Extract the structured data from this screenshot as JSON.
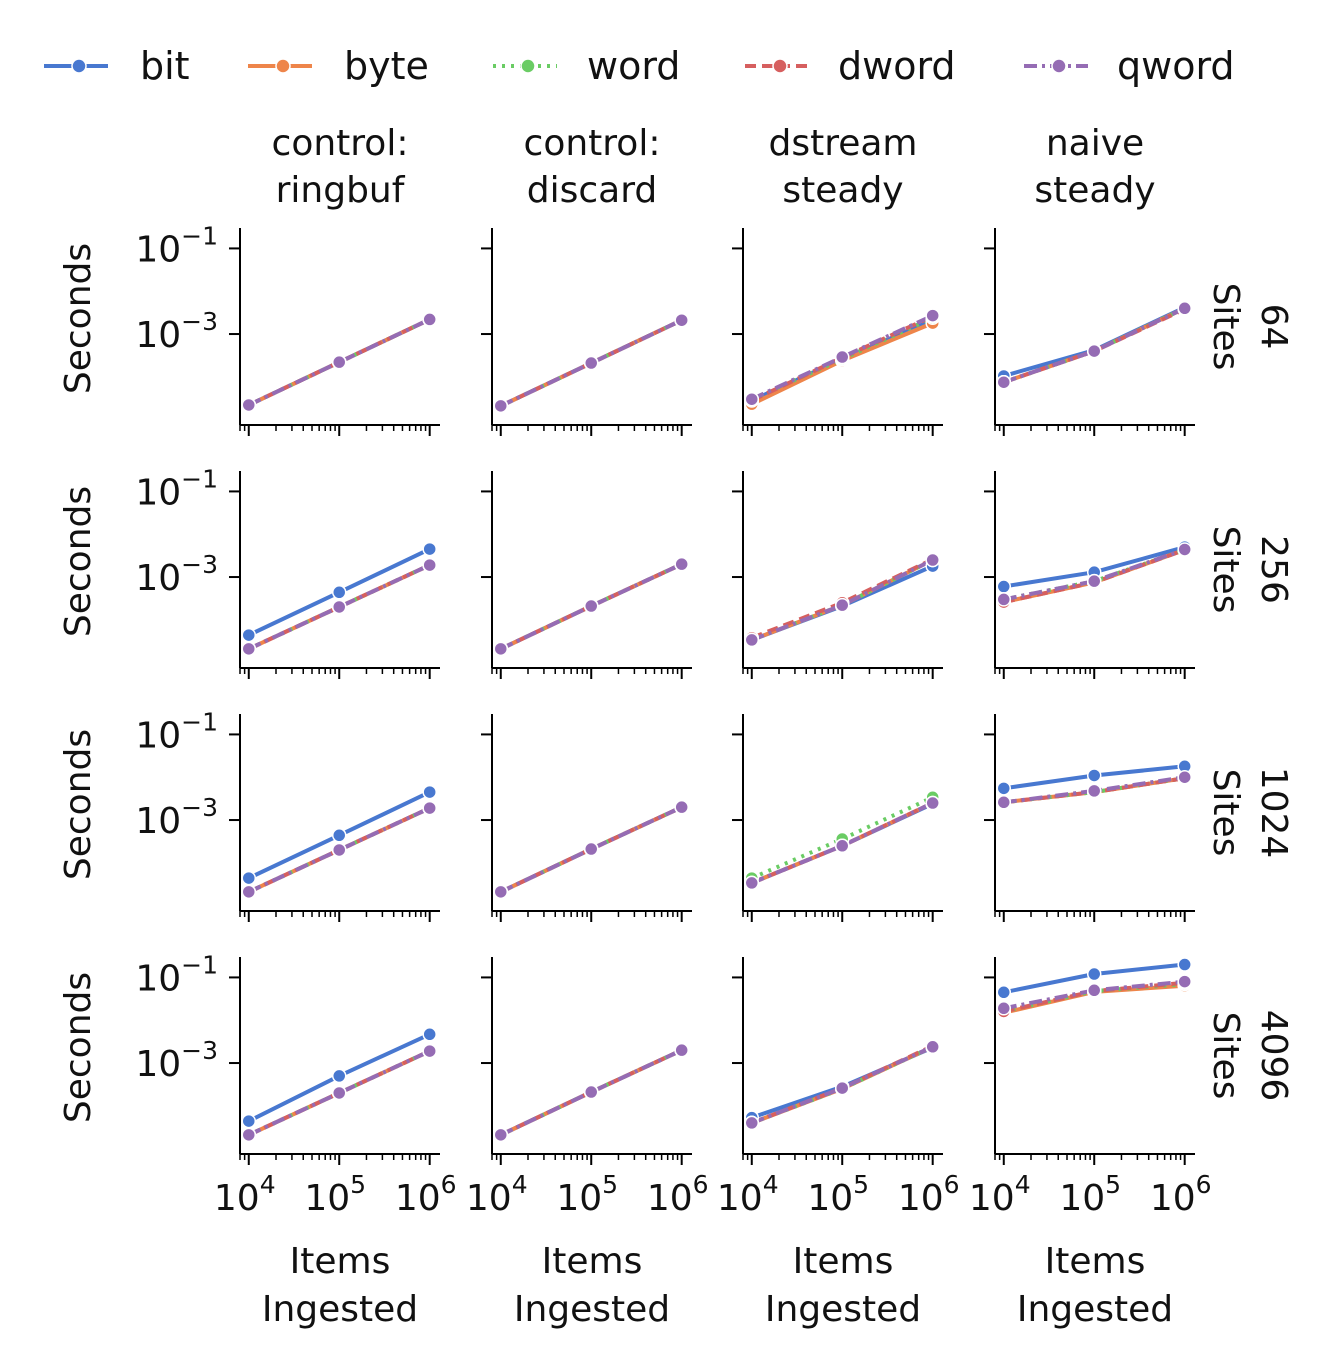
{
  "legend": [
    {
      "name": "bit",
      "color": "#4878d0",
      "dash": "solid"
    },
    {
      "name": "byte",
      "color": "#ee854a",
      "dash": "solid"
    },
    {
      "name": "word",
      "color": "#6acc64",
      "dash": "dotted"
    },
    {
      "name": "dword",
      "color": "#d65f5f",
      "dash": "dashed"
    },
    {
      "name": "qword",
      "color": "#956cb4",
      "dash": "dashdot"
    }
  ],
  "chart_data": {
    "type": "line",
    "facet_columns": [
      {
        "line1": "control:",
        "line2": "ringbuf"
      },
      {
        "line1": "control:",
        "line2": "discard"
      },
      {
        "line1": "dstream",
        "line2": "steady"
      },
      {
        "line1": "naive",
        "line2": "steady"
      }
    ],
    "facet_rows": [
      {
        "value": "64",
        "unit": "Sites"
      },
      {
        "value": "256",
        "unit": "Sites"
      },
      {
        "value": "1024",
        "unit": "Sites"
      },
      {
        "value": "4096",
        "unit": "Sites"
      }
    ],
    "ylabel": "Seconds",
    "xlabel_line1": "Items",
    "xlabel_line2": "Ingested",
    "x_scale": "log",
    "y_scale": "log",
    "x": [
      10000,
      100000,
      1000000
    ],
    "xlim": [
      8000,
      1300000
    ],
    "ylim": [
      7.5e-06,
      0.3
    ],
    "x_ticks": [
      {
        "value": 10000,
        "base": "10",
        "exp": "4"
      },
      {
        "value": 100000,
        "base": "10",
        "exp": "5"
      },
      {
        "value": 1000000,
        "base": "10",
        "exp": "6"
      }
    ],
    "y_ticks": [
      {
        "value": 0.1,
        "base": "10",
        "exp": "−1"
      },
      {
        "value": 0.001,
        "base": "10",
        "exp": "−3"
      }
    ],
    "grid": false,
    "legend_position": "top",
    "panels": [
      {
        "row": 0,
        "col": 0,
        "series": [
          {
            "name": "bit",
            "values": [
              2.2e-05,
              0.00022,
              0.0022
            ]
          },
          {
            "name": "byte",
            "values": [
              2.2e-05,
              0.00022,
              0.0022
            ]
          },
          {
            "name": "word",
            "values": [
              2.2e-05,
              0.00022,
              0.0022
            ]
          },
          {
            "name": "dword",
            "values": [
              2.2e-05,
              0.00022,
              0.0022
            ]
          },
          {
            "name": "qword",
            "values": [
              2.2e-05,
              0.00022,
              0.0022
            ]
          }
        ]
      },
      {
        "row": 0,
        "col": 1,
        "series": [
          {
            "name": "bit",
            "values": [
              2.1e-05,
              0.00021,
              0.0021
            ]
          },
          {
            "name": "byte",
            "values": [
              2.1e-05,
              0.00021,
              0.0021
            ]
          },
          {
            "name": "word",
            "values": [
              2.1e-05,
              0.00021,
              0.0021
            ]
          },
          {
            "name": "dword",
            "values": [
              2.1e-05,
              0.00021,
              0.0021
            ]
          },
          {
            "name": "qword",
            "values": [
              2.1e-05,
              0.00021,
              0.0021
            ]
          }
        ]
      },
      {
        "row": 0,
        "col": 2,
        "series": [
          {
            "name": "bit",
            "values": [
              2.8e-05,
              0.00026,
              0.0021
            ]
          },
          {
            "name": "byte",
            "values": [
              2.3e-05,
              0.00024,
              0.0018
            ]
          },
          {
            "name": "word",
            "values": [
              3e-05,
              0.00026,
              0.0024
            ]
          },
          {
            "name": "dword",
            "values": [
              2.8e-05,
              0.00028,
              0.0026
            ]
          },
          {
            "name": "qword",
            "values": [
              3e-05,
              0.00029,
              0.0027
            ]
          }
        ]
      },
      {
        "row": 0,
        "col": 3,
        "series": [
          {
            "name": "bit",
            "values": [
              0.000105,
              0.00042,
              0.0042
            ]
          },
          {
            "name": "byte",
            "values": [
              7.5e-05,
              0.0004,
              0.004
            ]
          },
          {
            "name": "word",
            "values": [
              7.5e-05,
              0.0004,
              0.004
            ]
          },
          {
            "name": "dword",
            "values": [
              7.5e-05,
              0.0004,
              0.0038
            ]
          },
          {
            "name": "qword",
            "values": [
              7.5e-05,
              0.0004,
              0.004
            ]
          }
        ]
      },
      {
        "row": 1,
        "col": 0,
        "series": [
          {
            "name": "bit",
            "values": [
              4.4e-05,
              0.00044,
              0.0045
            ]
          },
          {
            "name": "byte",
            "values": [
              2.1e-05,
              0.0002,
              0.0019
            ]
          },
          {
            "name": "word",
            "values": [
              2.1e-05,
              0.0002,
              0.0019
            ]
          },
          {
            "name": "dword",
            "values": [
              2.1e-05,
              0.0002,
              0.0019
            ]
          },
          {
            "name": "qword",
            "values": [
              2.1e-05,
              0.0002,
              0.0019
            ]
          }
        ]
      },
      {
        "row": 1,
        "col": 1,
        "series": [
          {
            "name": "bit",
            "values": [
              2.1e-05,
              0.00021,
              0.002
            ]
          },
          {
            "name": "byte",
            "values": [
              2.1e-05,
              0.00021,
              0.002
            ]
          },
          {
            "name": "word",
            "values": [
              2.1e-05,
              0.00021,
              0.002
            ]
          },
          {
            "name": "dword",
            "values": [
              2.1e-05,
              0.00021,
              0.002
            ]
          },
          {
            "name": "qword",
            "values": [
              2.1e-05,
              0.00021,
              0.002
            ]
          }
        ]
      },
      {
        "row": 1,
        "col": 2,
        "series": [
          {
            "name": "bit",
            "values": [
              3.4e-05,
              0.00021,
              0.0018
            ]
          },
          {
            "name": "byte",
            "values": [
              3.4e-05,
              0.00022,
              0.0025
            ]
          },
          {
            "name": "word",
            "values": [
              3.4e-05,
              0.00022,
              0.0025
            ]
          },
          {
            "name": "dword",
            "values": [
              3.8e-05,
              0.00025,
              0.0026
            ]
          },
          {
            "name": "qword",
            "values": [
              3.4e-05,
              0.00022,
              0.0025
            ]
          }
        ]
      },
      {
        "row": 1,
        "col": 3,
        "series": [
          {
            "name": "bit",
            "values": [
              0.0006,
              0.0013,
              0.005
            ]
          },
          {
            "name": "byte",
            "values": [
              0.00026,
              0.00075,
              0.0043
            ]
          },
          {
            "name": "word",
            "values": [
              0.0003,
              0.0008,
              0.0043
            ]
          },
          {
            "name": "dword",
            "values": [
              0.00026,
              0.00075,
              0.0043
            ]
          },
          {
            "name": "qword",
            "values": [
              0.0003,
              0.0008,
              0.0044
            ]
          }
        ]
      },
      {
        "row": 2,
        "col": 0,
        "series": [
          {
            "name": "bit",
            "values": [
              4.4e-05,
              0.00044,
              0.0045
            ]
          },
          {
            "name": "byte",
            "values": [
              2.1e-05,
              0.0002,
              0.0019
            ]
          },
          {
            "name": "word",
            "values": [
              2.1e-05,
              0.0002,
              0.0019
            ]
          },
          {
            "name": "dword",
            "values": [
              2.1e-05,
              0.0002,
              0.0019
            ]
          },
          {
            "name": "qword",
            "values": [
              2.1e-05,
              0.0002,
              0.0019
            ]
          }
        ]
      },
      {
        "row": 2,
        "col": 1,
        "series": [
          {
            "name": "bit",
            "values": [
              2.1e-05,
              0.00021,
              0.002
            ]
          },
          {
            "name": "byte",
            "values": [
              2.1e-05,
              0.00021,
              0.002
            ]
          },
          {
            "name": "word",
            "values": [
              2.1e-05,
              0.00021,
              0.002
            ]
          },
          {
            "name": "dword",
            "values": [
              2.1e-05,
              0.00021,
              0.002
            ]
          },
          {
            "name": "qword",
            "values": [
              2.1e-05,
              0.00021,
              0.002
            ]
          }
        ]
      },
      {
        "row": 2,
        "col": 2,
        "series": [
          {
            "name": "bit",
            "values": [
              3.4e-05,
              0.00025,
              0.0024
            ]
          },
          {
            "name": "byte",
            "values": [
              3.4e-05,
              0.00025,
              0.0025
            ]
          },
          {
            "name": "word",
            "values": [
              4.4e-05,
              0.00036,
              0.0034
            ]
          },
          {
            "name": "dword",
            "values": [
              3.4e-05,
              0.00025,
              0.0025
            ]
          },
          {
            "name": "qword",
            "values": [
              3.4e-05,
              0.00025,
              0.0025
            ]
          }
        ]
      },
      {
        "row": 2,
        "col": 3,
        "series": [
          {
            "name": "bit",
            "values": [
              0.0055,
              0.011,
              0.018
            ]
          },
          {
            "name": "byte",
            "values": [
              0.0026,
              0.0045,
              0.0095
            ]
          },
          {
            "name": "word",
            "values": [
              0.0026,
              0.0045,
              0.0095
            ]
          },
          {
            "name": "dword",
            "values": [
              0.0026,
              0.0045,
              0.0095
            ]
          },
          {
            "name": "qword",
            "values": [
              0.0026,
              0.0048,
              0.01
            ]
          }
        ]
      },
      {
        "row": 3,
        "col": 0,
        "series": [
          {
            "name": "bit",
            "values": [
              4.4e-05,
              0.0005,
              0.0047
            ]
          },
          {
            "name": "byte",
            "values": [
              2.1e-05,
              0.0002,
              0.0019
            ]
          },
          {
            "name": "word",
            "values": [
              2.1e-05,
              0.0002,
              0.0019
            ]
          },
          {
            "name": "dword",
            "values": [
              2.1e-05,
              0.0002,
              0.0019
            ]
          },
          {
            "name": "qword",
            "values": [
              2.1e-05,
              0.0002,
              0.0019
            ]
          }
        ]
      },
      {
        "row": 3,
        "col": 1,
        "series": [
          {
            "name": "bit",
            "values": [
              2.1e-05,
              0.00021,
              0.002
            ]
          },
          {
            "name": "byte",
            "values": [
              2.1e-05,
              0.00021,
              0.002
            ]
          },
          {
            "name": "word",
            "values": [
              2.1e-05,
              0.00021,
              0.002
            ]
          },
          {
            "name": "dword",
            "values": [
              2.1e-05,
              0.00021,
              0.002
            ]
          },
          {
            "name": "qword",
            "values": [
              2.1e-05,
              0.00021,
              0.002
            ]
          }
        ]
      },
      {
        "row": 3,
        "col": 2,
        "series": [
          {
            "name": "bit",
            "values": [
              5.3e-05,
              0.00028,
              0.0023
            ]
          },
          {
            "name": "byte",
            "values": [
              4e-05,
              0.00025,
              0.0024
            ]
          },
          {
            "name": "word",
            "values": [
              4e-05,
              0.00025,
              0.0024
            ]
          },
          {
            "name": "dword",
            "values": [
              4e-05,
              0.00026,
              0.0025
            ]
          },
          {
            "name": "qword",
            "values": [
              4e-05,
              0.00026,
              0.0024
            ]
          }
        ]
      },
      {
        "row": 3,
        "col": 3,
        "series": [
          {
            "name": "bit",
            "values": [
              0.045,
              0.12,
              0.2
            ]
          },
          {
            "name": "byte",
            "values": [
              0.015,
              0.046,
              0.064
            ]
          },
          {
            "name": "word",
            "values": [
              0.016,
              0.048,
              0.07
            ]
          },
          {
            "name": "dword",
            "values": [
              0.016,
              0.048,
              0.075
            ]
          },
          {
            "name": "qword",
            "values": [
              0.019,
              0.05,
              0.08
            ]
          }
        ]
      }
    ]
  }
}
